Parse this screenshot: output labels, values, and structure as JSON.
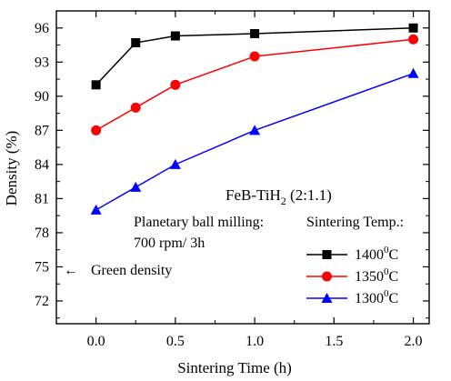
{
  "chart_data": {
    "type": "line",
    "title": "",
    "xlabel": "Sintering Time (h)",
    "ylabel": "Density (%)",
    "xlim": [
      -0.25,
      2.1
    ],
    "ylim": [
      70,
      97.5
    ],
    "x_ticks": [
      "0.0",
      "0.5",
      "1.0",
      "1.5",
      "2.0"
    ],
    "y_ticks": [
      "72",
      "75",
      "78",
      "81",
      "84",
      "87",
      "90",
      "93",
      "96"
    ],
    "x_tick_values": [
      0,
      0.5,
      1.0,
      1.5,
      2.0
    ],
    "y_tick_values": [
      72,
      75,
      78,
      81,
      84,
      87,
      90,
      93,
      96
    ],
    "x": [
      0,
      0.25,
      0.5,
      1.0,
      2.0
    ],
    "series": [
      {
        "name": "1400°C",
        "marker": "square",
        "color": "#000000",
        "values": [
          91,
          94.7,
          95.3,
          95.5,
          96
        ]
      },
      {
        "name": "1350°C",
        "marker": "circle",
        "color": "#ff0000",
        "values": [
          87,
          89,
          91,
          93.5,
          95
        ]
      },
      {
        "name": "1300°C",
        "marker": "triangle",
        "color": "#0000ff",
        "values": [
          80,
          82,
          84,
          87,
          92
        ]
      }
    ],
    "legend_title": "Sintering Temp.:",
    "legend_items": [
      {
        "base": "1400",
        "sup": "0",
        "suffix": "C"
      },
      {
        "base": "1350",
        "sup": "0",
        "suffix": "C"
      },
      {
        "base": "1300",
        "sup": "0",
        "suffix": "C"
      }
    ],
    "legend_position": "bottom-right",
    "annotations": {
      "material_main": "FeB-TiH",
      "material_sub": "2",
      "material_rest": " (2:1.1)",
      "milling_line1": "Planetary ball milling:",
      "milling_line2": "700 rpm/ 3h",
      "green_density_arrow": "←",
      "green_density_label": "Green density",
      "green_density_value": 75
    },
    "grid": false
  }
}
